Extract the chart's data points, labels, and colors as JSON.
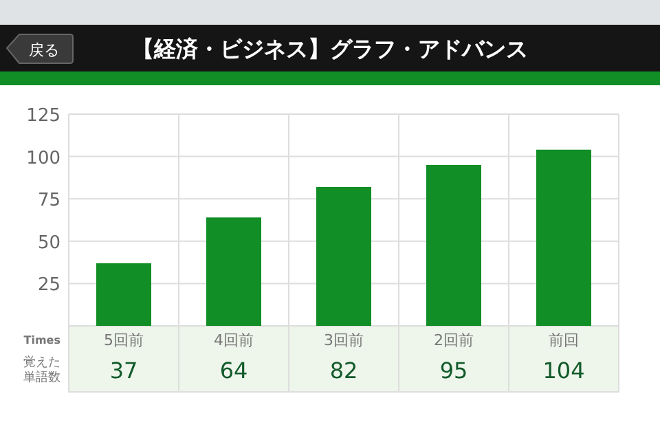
{
  "chart_data": {
    "type": "bar",
    "title": "【経済・ビジネス】グラフ・アドバンス",
    "annotations": [
      "戻る"
    ],
    "xlabel": "Times",
    "ylabel": "覚えた単語数",
    "categories": [
      "5回前",
      "4回前",
      "3回前",
      "2回前",
      "前回"
    ],
    "values": [
      37,
      64,
      82,
      95,
      104
    ],
    "color": "#118e25",
    "ylim": [
      0,
      125
    ],
    "yticks": [
      25,
      50,
      75,
      100,
      125
    ],
    "grid": true,
    "data_labels": true
  }
}
